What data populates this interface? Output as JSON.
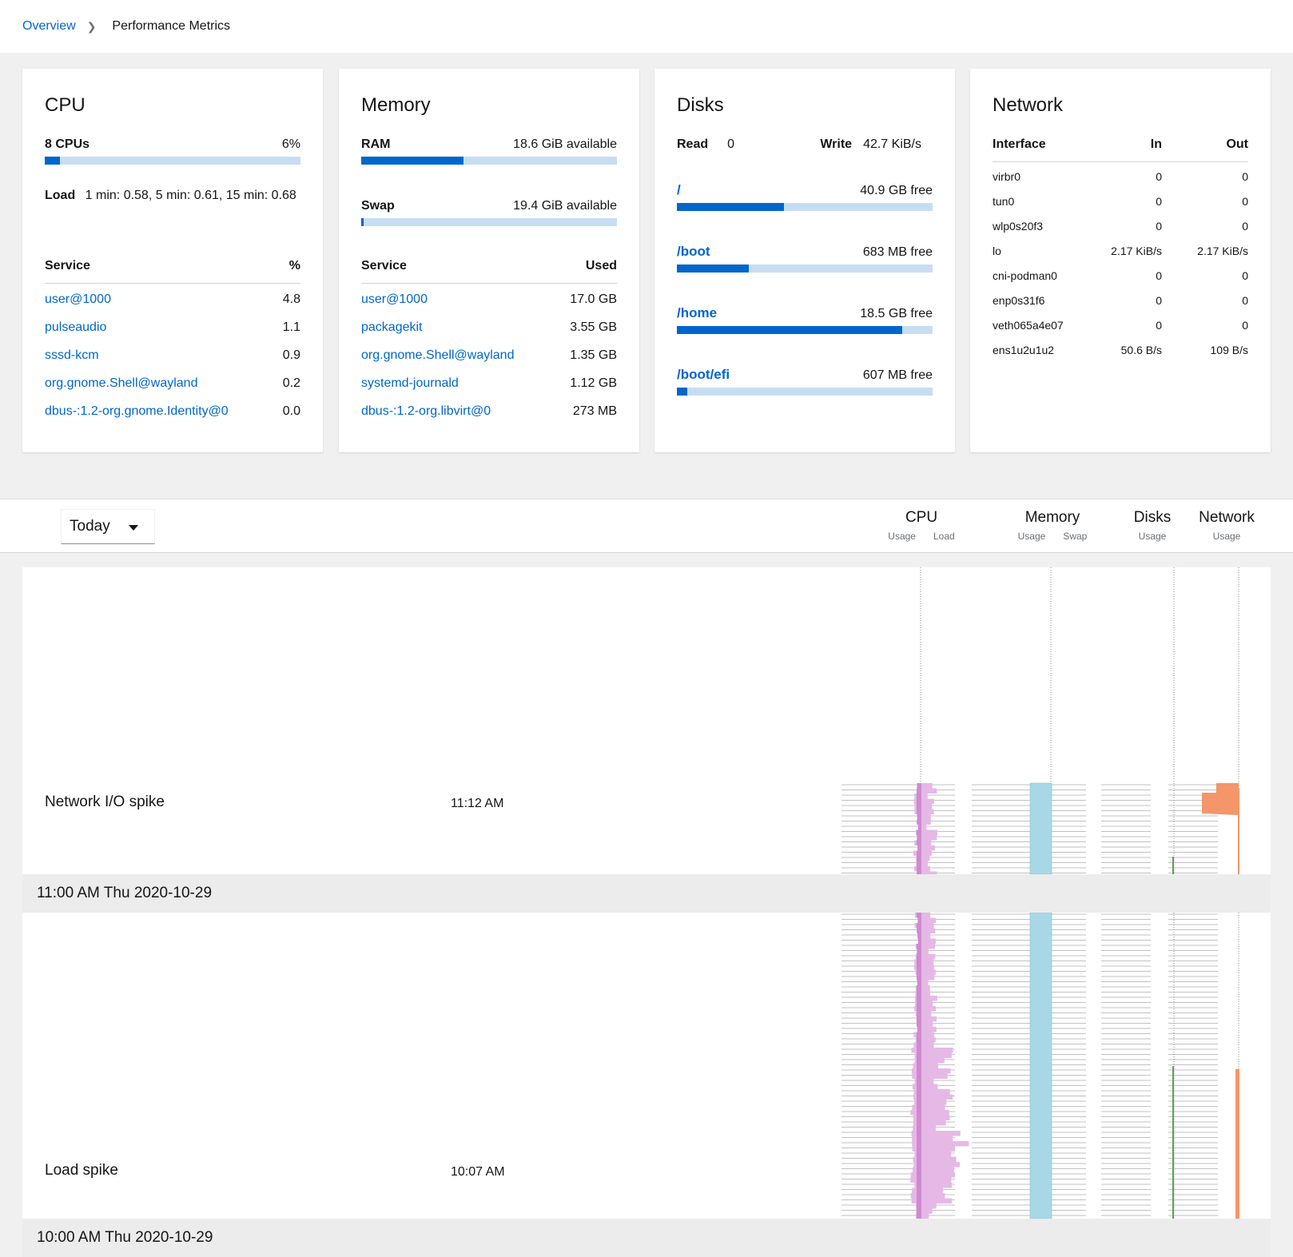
{
  "breadcrumb": {
    "parent": "Overview",
    "current": "Performance Metrics"
  },
  "cpu": {
    "title": "CPU",
    "count_label": "8 CPUs",
    "usage_text": "6%",
    "usage_fraction": 0.06,
    "load_label": "Load",
    "load_value": "1 min: 0.58, 5 min: 0.61, 15 min: 0.68",
    "service_header": "Service",
    "value_header": "%",
    "services": [
      {
        "name": "user@1000",
        "value": "4.8"
      },
      {
        "name": "pulseaudio",
        "value": "1.1"
      },
      {
        "name": "sssd-kcm",
        "value": "0.9"
      },
      {
        "name": "org.gnome.Shell@wayland",
        "value": "0.2"
      },
      {
        "name": "dbus-:1.2-org.gnome.Identity@0",
        "value": "0.0"
      }
    ]
  },
  "memory": {
    "title": "Memory",
    "ram_label": "RAM",
    "ram_text": "18.6 GiB available",
    "ram_fraction": 0.4,
    "swap_label": "Swap",
    "swap_text": "19.4 GiB available",
    "swap_fraction": 0.01,
    "service_header": "Service",
    "value_header": "Used",
    "services": [
      {
        "name": "user@1000",
        "value": "17.0 GB"
      },
      {
        "name": "packagekit",
        "value": "3.55 GB"
      },
      {
        "name": "org.gnome.Shell@wayland",
        "value": "1.35 GB"
      },
      {
        "name": "systemd-journald",
        "value": "1.12 GB"
      },
      {
        "name": "dbus-:1.2-org.libvirt@0",
        "value": "273 MB"
      }
    ]
  },
  "disks": {
    "title": "Disks",
    "read_label": "Read",
    "read_value": "0",
    "write_label": "Write",
    "write_value": "42.7 KiB/s",
    "mounts": [
      {
        "path": "/",
        "free": "40.9 GB free",
        "fraction": 0.42
      },
      {
        "path": "/boot",
        "free": "683 MB free",
        "fraction": 0.28
      },
      {
        "path": "/home",
        "free": "18.5 GB free",
        "fraction": 0.88
      },
      {
        "path": "/boot/efi",
        "free": "607 MB free",
        "fraction": 0.04
      }
    ]
  },
  "network": {
    "title": "Network",
    "headers": {
      "iface": "Interface",
      "in": "In",
      "out": "Out"
    },
    "interfaces": [
      {
        "name": "virbr0",
        "in": "0",
        "out": "0"
      },
      {
        "name": "tun0",
        "in": "0",
        "out": "0"
      },
      {
        "name": "wlp0s20f3",
        "in": "0",
        "out": "0"
      },
      {
        "name": "lo",
        "in": "2.17 KiB/s",
        "out": "2.17 KiB/s"
      },
      {
        "name": "cni-podman0",
        "in": "0",
        "out": "0"
      },
      {
        "name": "enp0s31f6",
        "in": "0",
        "out": "0"
      },
      {
        "name": "veth065a4e07",
        "in": "0",
        "out": "0"
      },
      {
        "name": "ens1u2u1u2",
        "in": "50.6 B/s",
        "out": "109 B/s"
      }
    ]
  },
  "toolbar": {
    "range": "Today",
    "columns": [
      {
        "title": "CPU",
        "subs": [
          "Usage",
          "Load"
        ]
      },
      {
        "title": "Memory",
        "subs": [
          "Usage",
          "Swap"
        ]
      },
      {
        "title": "Disks",
        "subs": [
          "Usage"
        ]
      },
      {
        "title": "Network",
        "subs": [
          "Usage"
        ]
      }
    ]
  },
  "timeline": {
    "events": [
      {
        "name": "Network I/O spike",
        "time": "11:12 AM"
      },
      {
        "name": "Load spike",
        "time": "10:07 AM"
      }
    ],
    "hours": [
      {
        "label": "11:00 AM Thu 2020-10-29"
      },
      {
        "label": "10:00 AM Thu 2020-10-29"
      }
    ]
  },
  "colors": {
    "accent": "#0066cc",
    "bar_track": "#c6ddf3",
    "cpu_fill": "#e6b8e6",
    "cpu_load": "#c06bc0",
    "memory_fill": "#a8d8e6",
    "disk_fill": "#5ba352",
    "network_fill": "#f4956a"
  }
}
